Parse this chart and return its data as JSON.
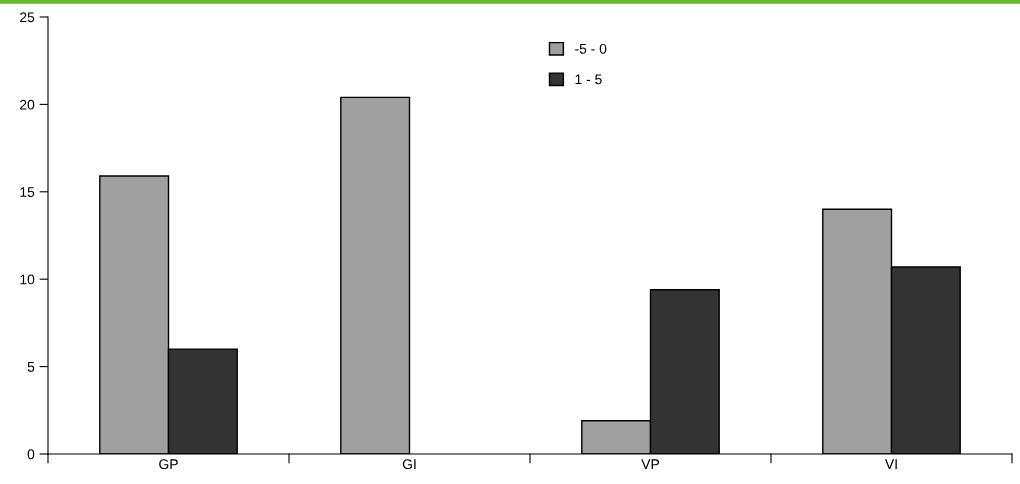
{
  "chart_data": {
    "type": "bar",
    "categories": [
      "GP",
      "GI",
      "VP",
      "VI"
    ],
    "series": [
      {
        "name": "-5 - 0",
        "color": "#a0a0a0",
        "values": [
          15.9,
          20.4,
          1.9,
          14.0
        ]
      },
      {
        "name": "1 - 5",
        "color": "#333333",
        "values": [
          6.0,
          null,
          9.4,
          10.7
        ]
      }
    ],
    "ylim": [
      0,
      25
    ],
    "yticks": [
      0,
      5,
      10,
      15,
      20,
      25
    ],
    "grid": false,
    "legend": "top"
  }
}
